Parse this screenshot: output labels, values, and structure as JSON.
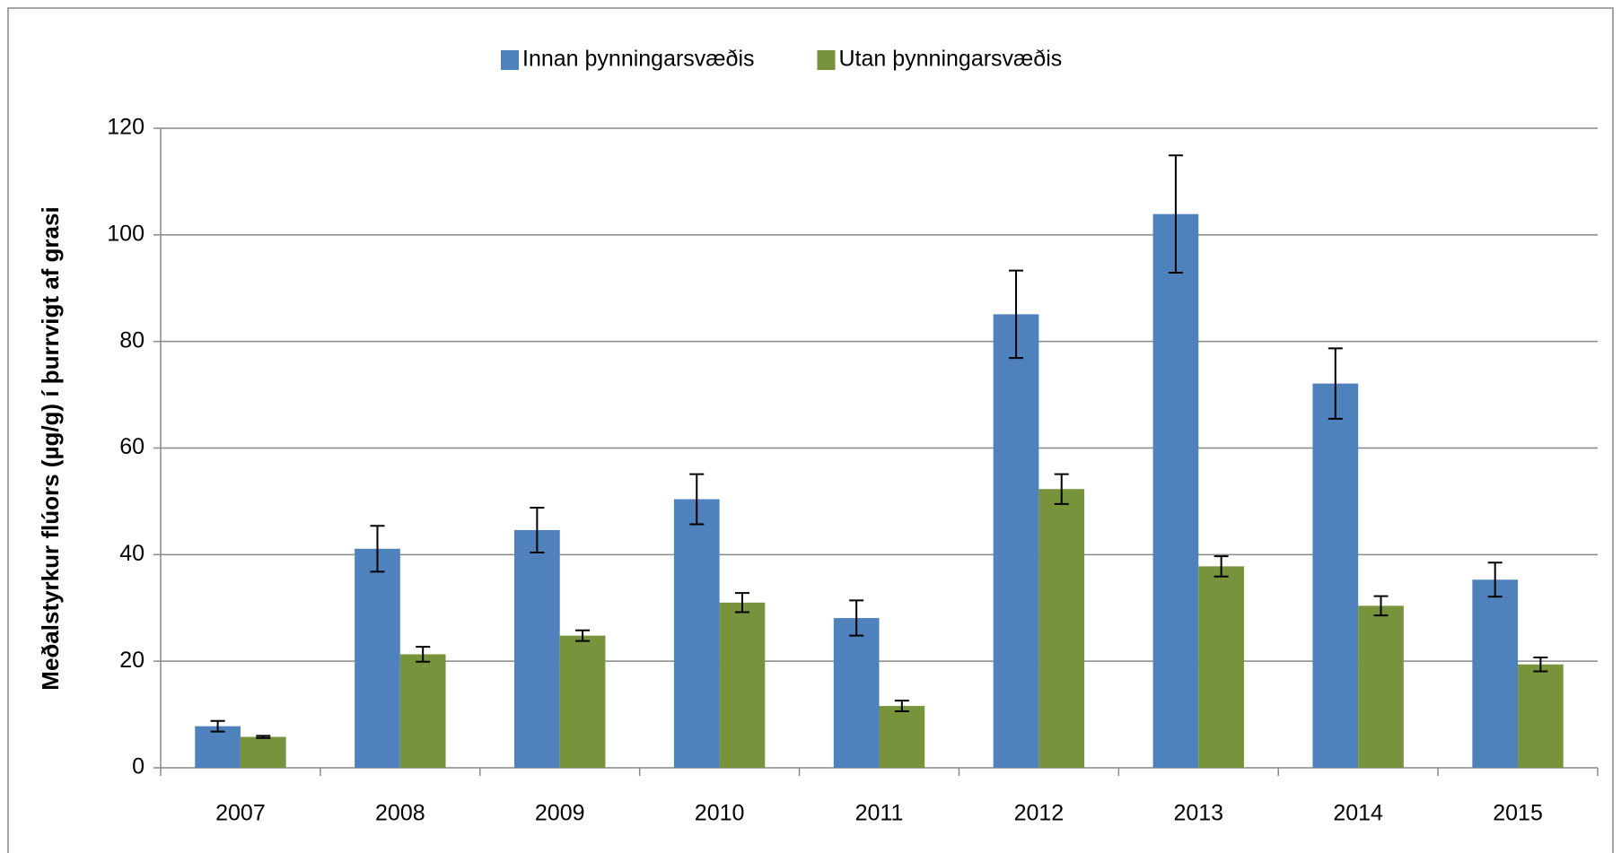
{
  "chart_data": {
    "type": "bar",
    "y_label": "Meðalstyrkur flúors (µg/g) í þurrvigt af grasi",
    "categories": [
      "2007",
      "2008",
      "2009",
      "2010",
      "2011",
      "2012",
      "2013",
      "2014",
      "2015"
    ],
    "series": [
      {
        "name": "Innan þynningarsvæðis",
        "color": "#4f81bd",
        "values": [
          7.8,
          41.1,
          44.6,
          50.4,
          28.1,
          85.1,
          103.9,
          72.1,
          35.3
        ],
        "errors": [
          1,
          4.3,
          4.2,
          4.7,
          3.3,
          8.2,
          11,
          6.6,
          3.2
        ]
      },
      {
        "name": "Utan þynningarsvæðis",
        "color": "#77933c",
        "values": [
          5.8,
          21.3,
          24.8,
          31,
          11.6,
          52.3,
          37.8,
          30.4,
          19.4
        ],
        "errors": [
          0.2,
          1.4,
          1,
          1.8,
          1,
          2.8,
          1.9,
          1.8,
          1.3
        ]
      }
    ],
    "ylim": [
      0,
      120
    ],
    "yticks": [
      0,
      20,
      40,
      60,
      80,
      100,
      120
    ],
    "grid": true,
    "legend": "top"
  }
}
